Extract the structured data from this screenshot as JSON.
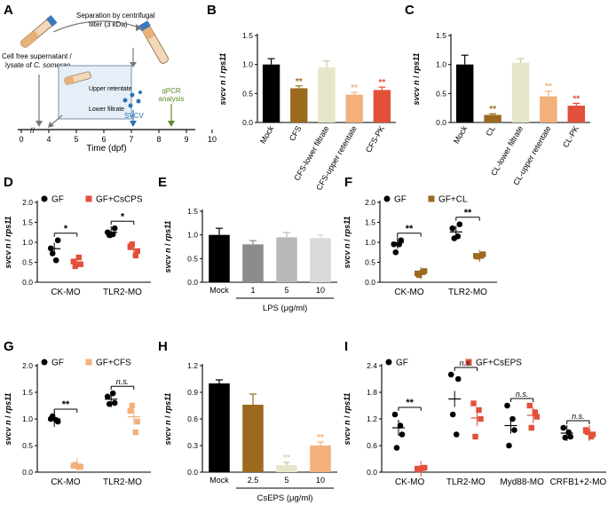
{
  "colors": {
    "black": "#000000",
    "brown": "#9B6A1E",
    "cream": "#E8E6C9",
    "peach": "#F2B07A",
    "red": "#E2503A",
    "gray_mid": "#8C8C8C",
    "gray_light": "#B9B9B9",
    "gray_lighter": "#D9D9D9",
    "blue": "#2A74B8",
    "green": "#5E8A2A"
  },
  "panel_a": {
    "letter": "A",
    "separation_label_1": "Separation by centrifugal",
    "separation_label_2": "filter (3 kDa)",
    "source_label_1": "Cell free supernatant /",
    "source_label_2": "lysate of ",
    "source_species": "C. someraе",
    "upper": "Upper retentate",
    "lower": "Lower filtrate",
    "svcv": "SVCV",
    "qpcr_1": "qPCR",
    "qpcr_2": "analysis",
    "ticks": [
      "0",
      "4",
      "5",
      "6",
      "7",
      "8",
      "9",
      "10"
    ],
    "xlabel": "Time (dpf)"
  },
  "chart_data": [
    {
      "panel": "B",
      "type": "bar",
      "ylabel_italic": "svcv n",
      "ylabel_rest": " / ",
      "ylabel_italic2": "rps11",
      "ylim": [
        0,
        1.5
      ],
      "yticks": [
        "0.0",
        "0.5",
        "1.0",
        "1.5"
      ],
      "categories": [
        "Mock",
        "CFS",
        "CFS-lower filtrate",
        "CFS-upper retentate",
        "CFS-PK"
      ],
      "values": [
        1.0,
        0.59,
        0.95,
        0.48,
        0.56
      ],
      "errors": [
        0.1,
        0.04,
        0.11,
        0.04,
        0.05
      ],
      "sig": [
        "",
        "**",
        "",
        "**",
        "**"
      ],
      "colors": [
        "#000000",
        "#9B6A1E",
        "#E8E6C9",
        "#F2B07A",
        "#E2503A"
      ]
    },
    {
      "panel": "C",
      "type": "bar",
      "ylim": [
        0,
        1.5
      ],
      "yticks": [
        "0.0",
        "0.5",
        "1.0",
        "1.5"
      ],
      "categories": [
        "Mock",
        "CL",
        "CL-lower filtrate",
        "CL-upper retentate",
        "CL-PK"
      ],
      "values": [
        1.0,
        0.13,
        1.03,
        0.45,
        0.29
      ],
      "errors": [
        0.16,
        0.02,
        0.07,
        0.09,
        0.04
      ],
      "sig": [
        "",
        "**",
        "",
        "**",
        "**"
      ],
      "colors": [
        "#000000",
        "#9B6A1E",
        "#E8E6C9",
        "#F2B07A",
        "#E2503A"
      ]
    },
    {
      "panel": "D",
      "type": "scatter",
      "ylim": [
        0,
        2.0
      ],
      "yticks": [
        "0.0",
        "0.5",
        "1.0",
        "1.5",
        "2.0"
      ],
      "groups": [
        "CK-MO",
        "TLR2-MO"
      ],
      "legend": [
        "GF",
        "GF+CsCPS"
      ],
      "series": [
        {
          "name": "GF",
          "points": [
            [
              0.85,
              1.05,
              0.72,
              0.55
            ],
            [
              1.25,
              1.35,
              1.18,
              1.2
            ]
          ],
          "mean": [
            0.84,
            1.25
          ]
        },
        {
          "name": "GF+CsCPS",
          "points": [
            [
              0.52,
              0.45,
              0.4,
              0.62
            ],
            [
              0.9,
              0.78,
              0.95,
              0.67
            ]
          ],
          "mean": [
            0.5,
            0.82
          ]
        }
      ],
      "sig": [
        "*",
        "*"
      ],
      "colors": [
        "#000000",
        "#E2503A"
      ]
    },
    {
      "panel": "E",
      "type": "bar",
      "ylim": [
        0,
        1.5
      ],
      "yticks": [
        "0.0",
        "0.5",
        "1.0",
        "1.5"
      ],
      "categories": [
        "Mock",
        "1",
        "5",
        "10"
      ],
      "values": [
        1.0,
        0.8,
        0.95,
        0.93
      ],
      "errors": [
        0.14,
        0.08,
        0.1,
        0.07
      ],
      "xlabel": "LPS (μg/ml)",
      "colors": [
        "#000000",
        "#8C8C8C",
        "#B9B9B9",
        "#D9D9D9"
      ]
    },
    {
      "panel": "F",
      "type": "scatter",
      "ylim": [
        0,
        2.0
      ],
      "yticks": [
        "0.0",
        "0.5",
        "1.0",
        "1.5",
        "2.0"
      ],
      "groups": [
        "CK-MO",
        "TLR2-MO"
      ],
      "legend": [
        "GF",
        "GF+CL"
      ],
      "series": [
        {
          "name": "GF",
          "points": [
            [
              0.95,
              1.05,
              0.75,
              0.95
            ],
            [
              1.35,
              1.45,
              1.1,
              1.15
            ]
          ],
          "mean": [
            0.99,
            1.26
          ]
        },
        {
          "name": "GF+CL",
          "points": [
            [
              0.22,
              0.28,
              0.18,
              0.25
            ],
            [
              0.66,
              0.7,
              0.64,
              0.66
            ]
          ],
          "mean": [
            0.23,
            0.66
          ]
        }
      ],
      "sig": [
        "**",
        "**"
      ],
      "colors": [
        "#000000",
        "#9B6A1E"
      ]
    },
    {
      "panel": "G",
      "type": "scatter",
      "ylim": [
        0,
        2.0
      ],
      "yticks": [
        "0.0",
        "0.5",
        "1.0",
        "1.5",
        "2.0"
      ],
      "groups": [
        "CK-MO",
        "TLR2-MO"
      ],
      "legend": [
        "GF",
        "GF+CFS"
      ],
      "series": [
        {
          "name": "GF",
          "points": [
            [
              1.0,
              0.95,
              1.05,
              0.98
            ],
            [
              1.42,
              1.3,
              1.28,
              1.48
            ]
          ],
          "mean": [
            1.0,
            1.37
          ]
        },
        {
          "name": "GF+CFS",
          "points": [
            [
              0.12,
              0.1,
              0.14,
              0.11
            ],
            [
              1.15,
              0.95,
              1.25,
              0.75
            ]
          ],
          "mean": [
            0.12,
            1.04
          ]
        }
      ],
      "sig": [
        "**",
        "n.s."
      ],
      "colors": [
        "#000000",
        "#F2B07A"
      ]
    },
    {
      "panel": "H",
      "type": "bar",
      "ylim": [
        0,
        1.2
      ],
      "yticks": [
        "0.0",
        "0.3",
        "0.6",
        "0.9",
        "1.2"
      ],
      "categories": [
        "Mock",
        "2.5",
        "5",
        "10"
      ],
      "values": [
        1.0,
        0.76,
        0.08,
        0.3
      ],
      "errors": [
        0.04,
        0.12,
        0.03,
        0.04
      ],
      "sig": [
        "",
        "",
        "**",
        "**"
      ],
      "xlabel": "CsEPS (μg/ml)",
      "colors": [
        "#000000",
        "#9B6A1E",
        "#E8E6C9",
        "#F2B07A"
      ]
    },
    {
      "panel": "I",
      "type": "scatter",
      "ylim": [
        0,
        2.4
      ],
      "yticks": [
        "0.0",
        "0.6",
        "1.2",
        "1.8",
        "2.4"
      ],
      "groups": [
        "CK-MO",
        "TLR2-MO",
        "Myd88-MO",
        "CRFB1+2-MO"
      ],
      "legend": [
        "GF",
        "GF+CsEPS"
      ],
      "series": [
        {
          "name": "GF",
          "points": [
            [
              1.3,
              0.85,
              0.55,
              1.05
            ],
            [
              2.2,
              2.1,
              1.3,
              0.85
            ],
            [
              1.5,
              0.95,
              0.6,
              1.2
            ],
            [
              1.0,
              0.8,
              0.78,
              0.9
            ]
          ],
          "mean": [
            1.0,
            1.65,
            1.05,
            0.88
          ]
        },
        {
          "name": "GF+CsEPS",
          "points": [
            [
              0.08,
              0.1,
              0.06,
              0.09
            ],
            [
              1.55,
              1.2,
              0.8,
              1.4
            ],
            [
              1.5,
              1.25,
              1.0,
              1.35
            ],
            [
              0.95,
              0.85,
              0.9,
              0.8
            ]
          ],
          "mean": [
            0.08,
            1.22,
            1.28,
            0.88
          ]
        }
      ],
      "sig": [
        "**",
        "n.s.",
        "n.s.",
        "n.s."
      ],
      "colors": [
        "#000000",
        "#E2503A"
      ]
    }
  ]
}
